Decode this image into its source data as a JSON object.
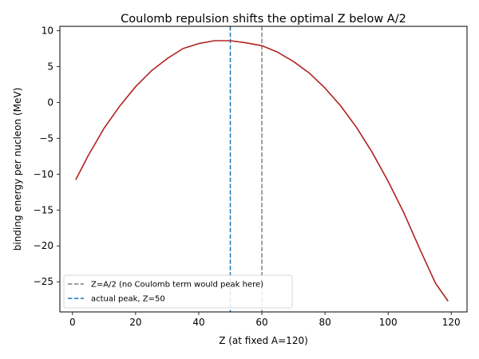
{
  "chart_data": {
    "type": "line",
    "title": "Coulomb repulsion shifts the optimal Z below A/2",
    "xlabel": "Z (at fixed A=120)",
    "ylabel": "binding energy per nucleon (MeV)",
    "xlim": [
      -4,
      125
    ],
    "ylim": [
      -29.2,
      10.6
    ],
    "xticks": [
      0,
      20,
      40,
      60,
      80,
      100,
      120
    ],
    "yticks": [
      -25,
      -20,
      -15,
      -10,
      -5,
      0,
      5,
      10
    ],
    "ytick_labels": [
      "−25",
      "−20",
      "−15",
      "−10",
      "−5",
      "0",
      "5",
      "10"
    ],
    "grid": false,
    "legend_position": "lower-left",
    "series": [
      {
        "kind": "curve",
        "color": "#b22222",
        "x": [
          1,
          5,
          10,
          15,
          20,
          25,
          30,
          35,
          40,
          45,
          50,
          55,
          60,
          65,
          70,
          75,
          80,
          85,
          90,
          95,
          100,
          105,
          110,
          115,
          119
        ],
        "y": [
          -10.8,
          -7.4,
          -3.6,
          -0.5,
          2.2,
          4.4,
          6.1,
          7.5,
          8.2,
          8.6,
          8.6,
          8.3,
          7.9,
          7.0,
          5.7,
          4.1,
          2.0,
          -0.5,
          -3.5,
          -7.0,
          -11.0,
          -15.4,
          -20.4,
          -25.2,
          -27.7
        ]
      }
    ],
    "reference_lines": [
      {
        "name": "Z=A/2 (no Coulomb term would peak here)",
        "x": 60,
        "color": "#7f7f7f",
        "style": "dashed"
      },
      {
        "name": "actual peak, Z=50",
        "x": 50,
        "color": "#1f77b4",
        "style": "dashed"
      }
    ]
  }
}
